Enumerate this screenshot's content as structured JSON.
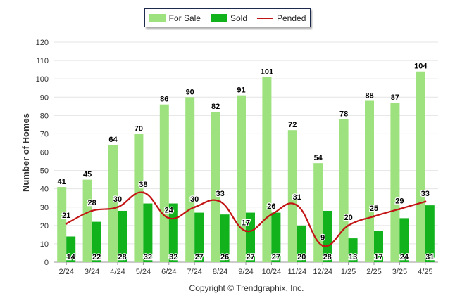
{
  "legend": {
    "items": [
      {
        "label": "For Sale",
        "color": "#9ee27f",
        "kind": "bar"
      },
      {
        "label": "Sold",
        "color": "#12b21d",
        "kind": "bar"
      },
      {
        "label": "Pended",
        "color": "#c21414",
        "kind": "line"
      }
    ]
  },
  "footer": {
    "copyright": "Copyright © Trendgraphix, Inc."
  },
  "chart_data": {
    "type": "bar",
    "categories": [
      "2/24",
      "3/24",
      "4/24",
      "5/24",
      "6/24",
      "7/24",
      "8/24",
      "9/24",
      "10/24",
      "11/24",
      "12/24",
      "1/25",
      "2/25",
      "3/25",
      "4/25"
    ],
    "series": [
      {
        "name": "For Sale",
        "type": "bar",
        "color": "#9ee27f",
        "values": [
          41,
          45,
          64,
          70,
          86,
          90,
          82,
          91,
          101,
          72,
          54,
          78,
          88,
          87,
          104
        ]
      },
      {
        "name": "Sold",
        "type": "bar",
        "color": "#12b21d",
        "values": [
          14,
          22,
          28,
          32,
          32,
          27,
          26,
          27,
          27,
          20,
          28,
          13,
          17,
          24,
          31
        ]
      },
      {
        "name": "Pended",
        "type": "line",
        "color": "#c21414",
        "values": [
          21,
          28,
          30,
          38,
          24,
          30,
          33,
          17,
          26,
          31,
          9,
          20,
          25,
          29,
          33
        ]
      }
    ],
    "ylabel": "Number of Homes",
    "xlabel": "",
    "ylim": [
      0,
      120
    ],
    "yticks": [
      0,
      10,
      20,
      30,
      40,
      50,
      60,
      70,
      80,
      90,
      100,
      110,
      120
    ],
    "grid": true,
    "legend_position": "top-center"
  }
}
